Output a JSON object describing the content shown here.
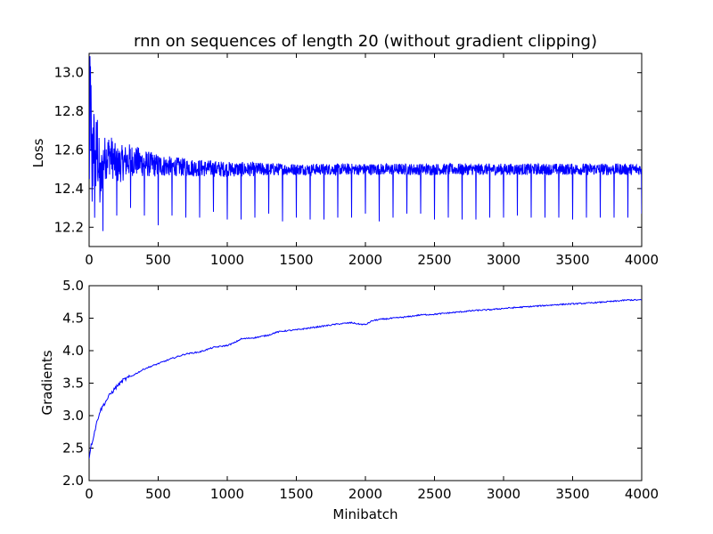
{
  "figure": {
    "background": "#ffffff",
    "line_color": "#0000ff"
  },
  "chart_data": [
    {
      "type": "line",
      "title": "rnn on sequences of length 20 (without gradient clipping)",
      "xlabel": "",
      "ylabel": "Loss",
      "xlim": [
        0,
        4000
      ],
      "ylim": [
        12.1,
        13.1
      ],
      "xticks": [
        0,
        500,
        1000,
        1500,
        2000,
        2500,
        3000,
        3500,
        4000
      ],
      "xtick_labels": [
        "0",
        "500",
        "1000",
        "1500",
        "2000",
        "2500",
        "3000",
        "3500",
        "4000"
      ],
      "yticks": [
        12.2,
        12.4,
        12.6,
        12.8,
        13.0
      ],
      "ytick_labels": [
        "12.2",
        "12.4",
        "12.6",
        "12.8",
        "13.0"
      ],
      "grid": false,
      "series": [
        {
          "name": "loss",
          "color": "#0000ff",
          "description_of_shape": "noisy line centred near 12.5; large oscillation early decaying to about ±0.03; periodic downward spikes to about 12.23-12.30 roughly every 100 minibatches",
          "x": [
            0,
            10,
            20,
            30,
            40,
            60,
            80,
            100,
            150,
            200,
            300,
            400,
            500,
            700,
            1000,
            1500,
            2000,
            2500,
            3000,
            3500,
            4000
          ],
          "values": [
            12.5,
            12.92,
            12.35,
            12.75,
            12.45,
            12.62,
            12.4,
            12.55,
            12.58,
            12.52,
            12.55,
            12.53,
            12.52,
            12.51,
            12.5,
            12.5,
            12.5,
            12.5,
            12.5,
            12.5,
            12.5
          ],
          "envelope_x": [
            0,
            100,
            200,
            400,
            600,
            1000,
            1500,
            2000,
            3000,
            4000
          ],
          "envelope_amplitude": [
            0.35,
            0.12,
            0.1,
            0.07,
            0.05,
            0.04,
            0.03,
            0.03,
            0.03,
            0.03
          ],
          "spike_x": [
            100,
            200,
            300,
            400,
            500,
            600,
            700,
            800,
            900,
            1000,
            1100,
            1200,
            1300,
            1400,
            1500,
            1600,
            1700,
            1800,
            1900,
            2000,
            2100,
            2200,
            2300,
            2400,
            2500,
            2600,
            2700,
            2800,
            2900,
            3000,
            3100,
            3200,
            3300,
            3400,
            3500,
            3600,
            3700,
            3800,
            3900,
            4000
          ],
          "spike_min": [
            12.18,
            12.26,
            12.3,
            12.26,
            12.21,
            12.26,
            12.25,
            12.25,
            12.28,
            12.24,
            12.24,
            12.25,
            12.27,
            12.23,
            12.25,
            12.24,
            12.24,
            12.25,
            12.25,
            12.27,
            12.23,
            12.25,
            12.27,
            12.27,
            12.24,
            12.25,
            12.24,
            12.24,
            12.25,
            12.25,
            12.26,
            12.25,
            12.25,
            12.25,
            12.24,
            12.25,
            12.25,
            12.25,
            12.25,
            12.27
          ]
        }
      ]
    },
    {
      "type": "line",
      "title": "",
      "xlabel": "Minibatch",
      "ylabel": "Gradients",
      "xlim": [
        0,
        4000
      ],
      "ylim": [
        2.0,
        5.0
      ],
      "xticks": [
        0,
        500,
        1000,
        1500,
        2000,
        2500,
        3000,
        3500,
        4000
      ],
      "xtick_labels": [
        "0",
        "500",
        "1000",
        "1500",
        "2000",
        "2500",
        "3000",
        "3500",
        "4000"
      ],
      "yticks": [
        2.0,
        2.5,
        3.0,
        3.5,
        4.0,
        4.5,
        5.0
      ],
      "ytick_labels": [
        "2.0",
        "2.5",
        "3.0",
        "3.5",
        "4.0",
        "4.5",
        "5.0"
      ],
      "grid": false,
      "series": [
        {
          "name": "gradients",
          "color": "#0000ff",
          "x": [
            0,
            10,
            25,
            50,
            75,
            100,
            150,
            200,
            250,
            300,
            400,
            500,
            600,
            700,
            800,
            900,
            1000,
            1050,
            1100,
            1200,
            1300,
            1350,
            1400,
            1500,
            1600,
            1700,
            1800,
            1900,
            1950,
            2000,
            2050,
            2100,
            2200,
            2300,
            2400,
            2500,
            2600,
            2700,
            2800,
            2900,
            3000,
            3200,
            3400,
            3600,
            3800,
            3900,
            4000
          ],
          "values": [
            2.35,
            2.5,
            2.62,
            2.85,
            3.05,
            3.15,
            3.32,
            3.45,
            3.55,
            3.6,
            3.72,
            3.8,
            3.88,
            3.95,
            3.98,
            4.05,
            4.08,
            4.12,
            4.18,
            4.2,
            4.24,
            4.28,
            4.3,
            4.32,
            4.35,
            4.38,
            4.41,
            4.43,
            4.41,
            4.4,
            4.46,
            4.48,
            4.5,
            4.52,
            4.55,
            4.56,
            4.58,
            4.6,
            4.62,
            4.63,
            4.65,
            4.68,
            4.71,
            4.73,
            4.76,
            4.78,
            4.78
          ]
        }
      ]
    }
  ]
}
